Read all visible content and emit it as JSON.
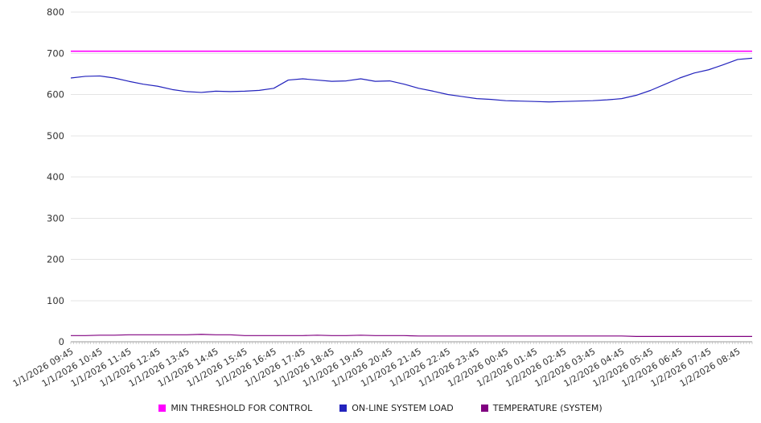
{
  "chart_data": {
    "type": "line",
    "title": "",
    "xlabel": "",
    "ylabel": "",
    "ylim": [
      0,
      800
    ],
    "ytick_step": 100,
    "grid": "horizontal",
    "legend_position": "bottom",
    "points_per_hour": 2,
    "x_labels": [
      "1/1/2026 09:45",
      "1/1/2026 10:45",
      "1/1/2026 11:45",
      "1/1/2026 12:45",
      "1/1/2026 13:45",
      "1/1/2026 14:45",
      "1/1/2026 15:45",
      "1/1/2026 16:45",
      "1/1/2026 17:45",
      "1/1/2026 18:45",
      "1/1/2026 19:45",
      "1/1/2026 20:45",
      "1/1/2026 21:45",
      "1/1/2026 22:45",
      "1/1/2026 23:45",
      "1/2/2026 00:45",
      "1/2/2026 01:45",
      "1/2/2026 02:45",
      "1/2/2026 03:45",
      "1/2/2026 04:45",
      "1/2/2026 05:45",
      "1/2/2026 06:45",
      "1/2/2026 07:45",
      "1/2/2026 08:45"
    ],
    "series": [
      {
        "name": "MIN THRESHOLD FOR CONTROL",
        "color": "#ff00ff",
        "values": [
          705,
          705
        ]
      },
      {
        "name": "ON-LINE SYSTEM LOAD",
        "color": "#2323bd",
        "values": [
          640,
          644,
          645,
          640,
          632,
          625,
          620,
          612,
          607,
          605,
          608,
          607,
          608,
          610,
          615,
          635,
          638,
          635,
          632,
          633,
          638,
          632,
          633,
          625,
          615,
          608,
          600,
          595,
          590,
          588,
          585,
          584,
          583,
          582,
          583,
          584,
          585,
          587,
          590,
          598,
          610,
          625,
          640,
          652,
          660,
          672,
          685,
          688
        ]
      },
      {
        "name": "TEMPERATURE (SYSTEM)",
        "color": "#800080",
        "values": [
          15,
          15,
          16,
          16,
          17,
          17,
          17,
          17,
          17,
          18,
          17,
          17,
          15,
          15,
          15,
          15,
          15,
          16,
          15,
          15,
          16,
          15,
          15,
          15,
          14,
          14,
          14,
          14,
          14,
          14,
          14,
          14,
          14,
          14,
          14,
          14,
          14,
          14,
          14,
          13,
          13,
          13,
          13,
          13,
          13,
          13,
          13,
          13
        ]
      }
    ]
  }
}
